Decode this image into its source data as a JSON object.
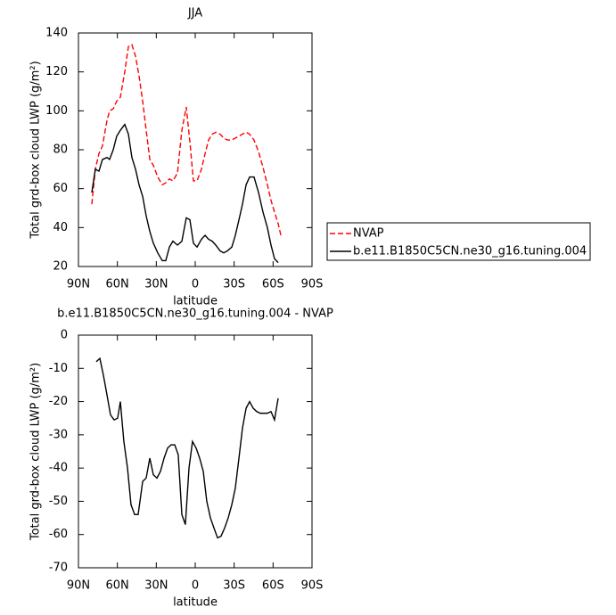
{
  "chart_data": [
    {
      "type": "line",
      "title": "JJA",
      "x_label": "latitude",
      "y_label": "Total grd-box cloud LWP (g/m²)",
      "x": [
        79.7,
        77.0,
        74.2,
        71.5,
        68.0,
        66.0,
        63.2,
        60.5,
        57.7,
        54.3,
        51.5,
        48.8,
        46.0,
        43.3,
        40.5,
        37.8,
        35.0,
        32.3,
        28.9,
        25.4,
        22.7,
        19.9,
        17.2,
        13.7,
        10.3,
        6.9,
        4.1,
        1.4,
        -1.4,
        -4.8,
        -7.6,
        -10.3,
        -13.1,
        -15.8,
        -19.2,
        -22.0,
        -24.7,
        -28.2,
        -30.9,
        -33.7,
        -36.4,
        -39.2,
        -41.9,
        -45.3,
        -48.8,
        -52.2,
        -55.6,
        -58.4,
        -61.1,
        -63.9,
        -66.0
      ],
      "series": [
        {
          "name": "NVAP",
          "color": "#ff0000",
          "line_style": "dashed",
          "values": [
            52,
            70,
            78,
            82,
            95,
            100,
            101,
            105,
            107,
            120,
            133,
            134,
            128,
            118,
            105,
            90,
            75,
            72,
            66,
            62,
            63,
            65,
            64,
            68,
            90,
            102,
            84,
            64,
            64,
            70,
            78,
            85,
            88,
            89,
            88,
            86,
            85,
            85,
            86,
            87,
            88,
            89,
            88,
            85,
            79,
            71,
            62,
            54,
            48,
            42,
            36
          ]
        },
        {
          "name": "b.e11.B1850C5CN.ne30_g16.tuning.004",
          "color": "#000000",
          "line_style": "solid",
          "values": [
            58,
            70,
            69,
            75,
            76,
            75,
            80,
            87,
            90,
            93,
            88,
            76,
            70,
            62,
            56,
            46,
            38,
            32,
            27,
            23,
            23,
            30,
            33,
            31,
            33,
            45,
            44,
            32,
            30,
            34,
            36,
            34,
            33,
            31,
            28,
            27,
            28,
            30,
            36,
            44,
            52,
            62,
            66,
            66,
            58,
            48,
            40,
            31,
            24,
            22,
            null
          ]
        }
      ],
      "xlim": [
        90,
        -90
      ],
      "xticks": [
        {
          "value": 90,
          "label": "90N"
        },
        {
          "value": 60,
          "label": "60N"
        },
        {
          "value": 30,
          "label": "30N"
        },
        0,
        {
          "value": -30,
          "label": "30S"
        },
        {
          "value": -60,
          "label": "60S"
        },
        {
          "value": -90,
          "label": "90S"
        }
      ],
      "ylim": [
        20,
        140
      ],
      "yticks": [
        20,
        40,
        60,
        80,
        100,
        120,
        140
      ],
      "legend": "right"
    },
    {
      "type": "line",
      "title": "b.e11.B1850C5CN.ne30_g16.tuning.004 - NVAP",
      "x_label": "latitude",
      "y_label": "Total grd-box cloud LWP (g/m²)",
      "x": [
        76.3,
        73.5,
        70.8,
        68.0,
        65.3,
        62.5,
        59.8,
        57.7,
        55.0,
        52.2,
        49.5,
        46.7,
        44.0,
        40.5,
        37.8,
        35.0,
        32.3,
        29.5,
        26.8,
        24.0,
        21.3,
        18.6,
        15.8,
        13.1,
        10.3,
        7.6,
        4.8,
        2.1,
        -0.7,
        -3.4,
        -6.2,
        -8.9,
        -11.7,
        -14.4,
        -17.2,
        -19.9,
        -22.7,
        -25.4,
        -28.2,
        -30.9,
        -33.7,
        -36.4,
        -39.2,
        -41.9,
        -44.7,
        -47.4,
        -50.1,
        -52.9,
        -55.6,
        -58.4,
        -61.1,
        -63.9
      ],
      "series": [
        {
          "color": "#000000",
          "line_style": "solid",
          "values": [
            -8,
            -7,
            -12,
            -18,
            -24,
            -25.5,
            -25,
            -20,
            -32,
            -40,
            -51,
            -54,
            -54,
            -44,
            -43,
            -37,
            -42,
            -43,
            -41,
            -37,
            -34,
            -33,
            -33,
            -36,
            -54,
            -57,
            -40,
            -32,
            -34,
            -37,
            -41,
            -50,
            -55,
            -58,
            -61,
            -60.5,
            -58,
            -55,
            -51,
            -46,
            -37,
            -28,
            -22,
            -20,
            -22,
            -23,
            -23.5,
            -23.5,
            -23.5,
            -23,
            -25.5,
            -19
          ]
        }
      ],
      "xlim": [
        90,
        -90
      ],
      "xticks": [
        {
          "value": 90,
          "label": "90N"
        },
        {
          "value": 60,
          "label": "60N"
        },
        {
          "value": 30,
          "label": "30N"
        },
        0,
        {
          "value": -30,
          "label": "30S"
        },
        {
          "value": -60,
          "label": "60S"
        },
        {
          "value": -90,
          "label": "90S"
        }
      ],
      "ylim": [
        -70,
        0
      ],
      "yticks": [
        -70,
        -60,
        -50,
        -40,
        -30,
        -20,
        -10,
        0
      ]
    }
  ]
}
